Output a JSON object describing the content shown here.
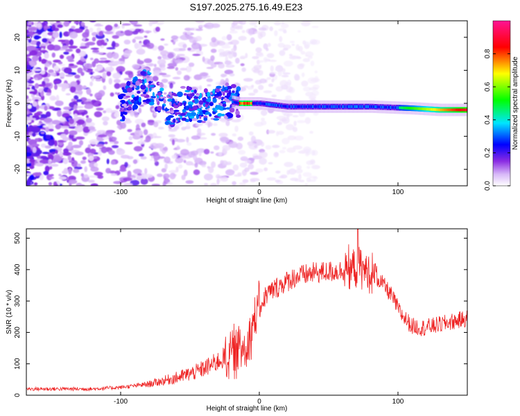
{
  "figure_title": "S197.2025.275.16.49.E23",
  "chart_data": [
    {
      "type": "heatmap",
      "title": "S197.2025.275.16.49.E23",
      "xlabel": "Height of straight line (km)",
      "ylabel": "Frequency (Hz)",
      "xlim": [
        -168,
        150
      ],
      "ylim": [
        -25,
        25
      ],
      "x_ticks": [
        -100,
        0,
        100
      ],
      "x_tick_labels": [
        "-100",
        "0",
        "100"
      ],
      "y_ticks": [
        -20,
        -10,
        0,
        10,
        20
      ],
      "y_tick_labels": [
        "-20",
        "-10",
        "0",
        "10",
        "20"
      ],
      "colorbar": {
        "label": "Normalized spectral amplitude",
        "range": [
          0,
          1
        ],
        "ticks": [
          0.0,
          0.2,
          0.4,
          0.6,
          0.8
        ],
        "tick_labels": [
          "0.0",
          "0.2",
          "0.4",
          "0.6",
          "0.8"
        ],
        "colormap": [
          "#ffffff",
          "#d8b8f8",
          "#8a2be2",
          "#0000ff",
          "#00e5ff",
          "#00ff00",
          "#ffff00",
          "#ff0000",
          "#ff1493"
        ]
      },
      "ridge": {
        "description_points_x": [
          -100,
          -90,
          -82,
          -75,
          -65,
          -55,
          -45,
          -35,
          -25,
          -15,
          0,
          20,
          50,
          80,
          110,
          130,
          148
        ],
        "description_points_y": [
          -1,
          3,
          5,
          3,
          -2,
          0,
          -1,
          -1,
          1,
          0,
          0,
          -1,
          -1,
          -1,
          -1.5,
          -2,
          -2
        ],
        "peak_amplitude_region_x": [
          100,
          148
        ],
        "peak_amplitude_y": -2
      }
    },
    {
      "type": "line",
      "xlabel": "Height of straight line (km)",
      "ylabel": "SNR (10 * v/v)",
      "xlim": [
        -168,
        150
      ],
      "ylim": [
        0,
        530
      ],
      "x_ticks": [
        -100,
        0,
        100
      ],
      "x_tick_labels": [
        "-100",
        "0",
        "100"
      ],
      "y_ticks": [
        0,
        100,
        200,
        300,
        400,
        500
      ],
      "y_tick_labels": [
        "0",
        "100",
        "200",
        "300",
        "400",
        "500"
      ],
      "series": [
        {
          "name": "SNR",
          "color": "#ee2222",
          "envelope_x": [
            -168,
            -140,
            -120,
            -100,
            -80,
            -60,
            -45,
            -35,
            -25,
            -15,
            -8,
            -3,
            5,
            15,
            25,
            40,
            55,
            65,
            70,
            75,
            80,
            88,
            95,
            102,
            110,
            118,
            125,
            135,
            150
          ],
          "envelope_y": [
            20,
            20,
            20,
            25,
            35,
            55,
            75,
            95,
            120,
            145,
            170,
            250,
            320,
            350,
            375,
            390,
            395,
            400,
            405,
            400,
            390,
            360,
            320,
            260,
            220,
            215,
            220,
            230,
            245
          ]
        }
      ]
    }
  ]
}
